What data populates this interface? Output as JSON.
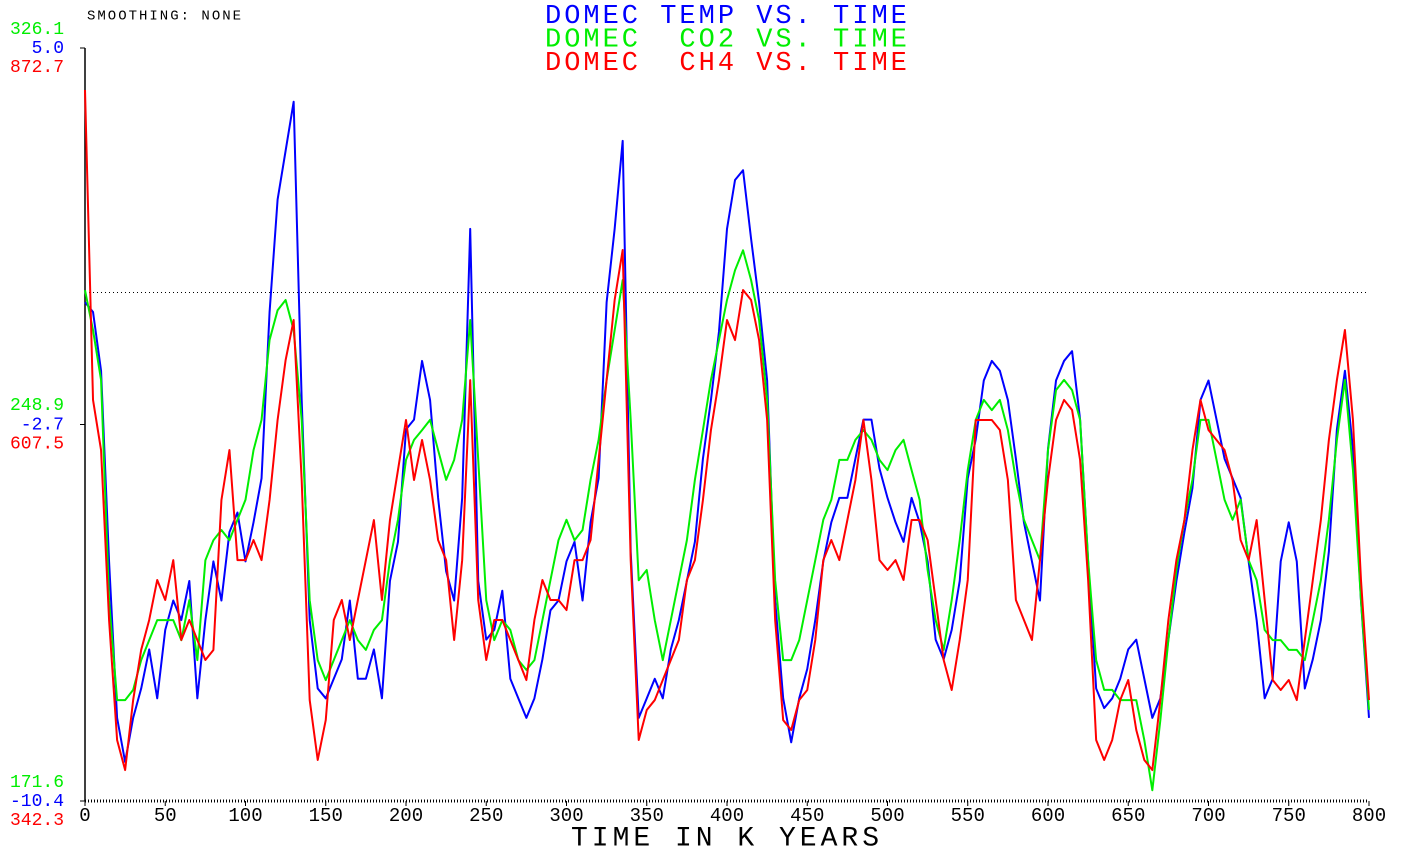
{
  "chart_data": {
    "type": "line",
    "subtitle": "SMOOTHING: NONE",
    "x_label": "TIME IN K YEARS",
    "xlim": [
      0,
      800
    ],
    "xticks": [
      0,
      50,
      100,
      150,
      200,
      250,
      300,
      350,
      400,
      450,
      500,
      550,
      600,
      650,
      700,
      750,
      800
    ],
    "reference_y": 0,
    "x": [
      0,
      5,
      10,
      15,
      20,
      25,
      30,
      35,
      40,
      45,
      50,
      55,
      60,
      65,
      70,
      75,
      80,
      85,
      90,
      95,
      100,
      105,
      110,
      115,
      120,
      125,
      130,
      135,
      140,
      145,
      150,
      155,
      160,
      165,
      170,
      175,
      180,
      185,
      190,
      195,
      200,
      205,
      210,
      215,
      220,
      225,
      230,
      235,
      240,
      245,
      250,
      255,
      260,
      265,
      270,
      275,
      280,
      285,
      290,
      295,
      300,
      305,
      310,
      315,
      320,
      325,
      330,
      335,
      340,
      345,
      350,
      355,
      360,
      365,
      370,
      375,
      380,
      385,
      390,
      395,
      400,
      405,
      410,
      415,
      420,
      425,
      430,
      435,
      440,
      445,
      450,
      455,
      460,
      465,
      470,
      475,
      480,
      485,
      490,
      495,
      500,
      505,
      510,
      515,
      520,
      525,
      530,
      535,
      540,
      545,
      550,
      555,
      560,
      565,
      570,
      575,
      580,
      585,
      590,
      595,
      600,
      605,
      610,
      615,
      620,
      625,
      630,
      635,
      640,
      645,
      650,
      655,
      660,
      665,
      670,
      675,
      680,
      685,
      690,
      695,
      700,
      705,
      710,
      715,
      720,
      725,
      730,
      735,
      740,
      745,
      750,
      755,
      760,
      765,
      770,
      775,
      780,
      785,
      790,
      795,
      800
    ],
    "series": [
      {
        "name": "DOMEC TEMP VS. TIME",
        "color": "#0000ff",
        "ylim": [
          -10.4,
          5
        ],
        "yticks": [
          -10.4,
          -2.7,
          {
            "value": 5,
            "label": "5.0"
          }
        ],
        "values": [
          -0.2,
          -0.4,
          -1.6,
          -5.5,
          -8.7,
          -9.6,
          -8.7,
          -8.1,
          -7.3,
          -8.3,
          -6.9,
          -6.3,
          -6.7,
          -5.9,
          -8.3,
          -6.7,
          -5.5,
          -6.3,
          -4.9,
          -4.5,
          -5.5,
          -4.7,
          -3.8,
          -0.4,
          1.9,
          2.9,
          3.9,
          -2.2,
          -6.7,
          -8.1,
          -8.3,
          -7.9,
          -7.5,
          -6.3,
          -7.9,
          -7.9,
          -7.3,
          -8.3,
          -5.9,
          -5.1,
          -2.8,
          -2.6,
          -1.4,
          -2.2,
          -4.2,
          -5.7,
          -6.3,
          -4.2,
          1.3,
          -5.9,
          -7.1,
          -6.9,
          -6.1,
          -7.9,
          -8.3,
          -8.7,
          -8.3,
          -7.5,
          -6.5,
          -6.3,
          -5.5,
          -5.1,
          -6.3,
          -4.7,
          -3.8,
          -0.2,
          1.3,
          3.1,
          -5.3,
          -8.7,
          -8.3,
          -7.9,
          -8.3,
          -7.3,
          -6.7,
          -5.9,
          -5.1,
          -3.4,
          -2.2,
          -0.8,
          1.3,
          2.3,
          2.5,
          1.1,
          -0.2,
          -1.8,
          -6.3,
          -8.3,
          -9.2,
          -8.3,
          -7.7,
          -6.7,
          -5.5,
          -4.7,
          -4.2,
          -4.2,
          -3.4,
          -2.6,
          -2.6,
          -3.6,
          -4.2,
          -4.7,
          -5.1,
          -4.2,
          -4.7,
          -5.5,
          -7.1,
          -7.5,
          -6.9,
          -5.9,
          -3.8,
          -3.0,
          -1.8,
          -1.4,
          -1.6,
          -2.2,
          -3.4,
          -4.7,
          -5.5,
          -6.3,
          -3.2,
          -1.8,
          -1.4,
          -1.2,
          -2.6,
          -5.5,
          -8.1,
          -8.5,
          -8.3,
          -7.9,
          -7.3,
          -7.1,
          -7.9,
          -8.7,
          -8.3,
          -7.1,
          -5.9,
          -4.9,
          -4.0,
          -2.2,
          -1.8,
          -2.6,
          -3.4,
          -3.8,
          -4.2,
          -5.5,
          -6.7,
          -8.3,
          -7.9,
          -5.5,
          -4.7,
          -5.5,
          -8.1,
          -7.5,
          -6.7,
          -5.3,
          -2.8,
          -1.6,
          -3.2,
          -6.3,
          -8.7
        ]
      },
      {
        "name": "DOMEC  CO2 VS. TIME",
        "color": "#00ee00",
        "ylim": [
          171.6,
          326.1
        ],
        "yticks": [
          171.6,
          248.9,
          326.1
        ],
        "values": [
          276.4,
          268.2,
          258.0,
          212.8,
          192.3,
          192.3,
          194.4,
          200.5,
          204.6,
          208.7,
          208.7,
          208.7,
          204.6,
          212.8,
          200.5,
          221.0,
          225.1,
          227.2,
          225.1,
          229.3,
          233.4,
          243.6,
          249.8,
          266.2,
          272.3,
          274.4,
          268.2,
          249.8,
          212.8,
          200.5,
          196.4,
          200.5,
          204.6,
          208.7,
          204.6,
          202.6,
          206.7,
          208.7,
          221.0,
          229.3,
          241.6,
          245.7,
          247.7,
          249.8,
          243.6,
          237.5,
          241.6,
          249.8,
          270.3,
          241.6,
          212.8,
          204.6,
          208.7,
          206.7,
          200.5,
          198.5,
          200.5,
          208.7,
          216.9,
          225.1,
          229.3,
          225.1,
          227.2,
          237.5,
          245.7,
          258.0,
          268.2,
          278.5,
          249.8,
          216.9,
          219.0,
          208.7,
          200.5,
          208.7,
          216.9,
          225.1,
          237.5,
          247.7,
          258.0,
          266.2,
          274.4,
          280.5,
          284.6,
          278.5,
          270.3,
          253.9,
          216.9,
          200.5,
          200.5,
          204.6,
          212.8,
          221.0,
          229.3,
          233.4,
          241.6,
          241.6,
          245.7,
          247.7,
          245.7,
          241.6,
          239.5,
          243.6,
          245.7,
          239.5,
          233.4,
          219.0,
          208.7,
          202.6,
          212.8,
          225.1,
          239.5,
          249.8,
          253.9,
          251.8,
          253.9,
          247.7,
          237.5,
          229.3,
          225.1,
          221.0,
          243.6,
          255.9,
          258.0,
          255.9,
          249.8,
          221.0,
          200.5,
          194.4,
          194.4,
          192.3,
          192.3,
          192.3,
          184.1,
          173.8,
          188.2,
          204.6,
          219.0,
          229.3,
          237.5,
          249.8,
          249.8,
          241.6,
          233.4,
          229.3,
          233.4,
          221.0,
          216.9,
          206.7,
          204.6,
          204.6,
          202.6,
          202.6,
          200.5,
          208.7,
          216.9,
          229.3,
          245.7,
          258.0,
          239.5,
          212.8,
          190.3
        ]
      },
      {
        "name": "DOMEC  CH4 VS. TIME",
        "color": "#ff0000",
        "ylim": [
          342.3,
          872.7
        ],
        "yticks": [
          342.3,
          607.5,
          872.7
        ],
        "values": [
          843.1,
          624.8,
          589.5,
          469.8,
          385.3,
          364.1,
          413.4,
          448.7,
          469.8,
          498.0,
          483.9,
          512.0,
          455.7,
          469.8,
          455.7,
          441.6,
          448.7,
          554.3,
          589.5,
          512.0,
          512.0,
          526.1,
          512.0,
          554.3,
          610.7,
          652.9,
          681.1,
          568.4,
          413.4,
          371.2,
          399.3,
          469.8,
          483.9,
          455.7,
          483.9,
          512.0,
          540.2,
          483.9,
          540.2,
          575.4,
          610.7,
          568.4,
          596.6,
          568.4,
          526.1,
          512.0,
          455.7,
          512.0,
          638.8,
          483.9,
          441.6,
          469.8,
          469.8,
          455.7,
          441.6,
          427.5,
          469.8,
          498.0,
          483.9,
          483.9,
          476.8,
          512.0,
          512.0,
          526.1,
          582.5,
          638.8,
          695.2,
          730.4,
          512.0,
          385.3,
          406.4,
          413.4,
          427.5,
          441.6,
          455.7,
          498.0,
          512.0,
          554.3,
          603.6,
          638.8,
          681.1,
          667.0,
          702.2,
          695.2,
          667.0,
          610.7,
          469.8,
          399.3,
          392.3,
          413.4,
          420.5,
          455.7,
          512.0,
          526.1,
          512.0,
          540.2,
          568.4,
          610.7,
          568.4,
          512.0,
          505.0,
          512.0,
          498.0,
          540.2,
          540.2,
          526.1,
          483.9,
          441.6,
          420.5,
          455.7,
          498.0,
          610.7,
          610.7,
          610.7,
          603.6,
          568.4,
          483.9,
          469.8,
          455.7,
          512.0,
          568.4,
          610.7,
          624.8,
          617.7,
          582.5,
          498.0,
          385.3,
          371.2,
          385.3,
          413.4,
          427.5,
          392.3,
          371.2,
          364.1,
          413.4,
          469.8,
          512.0,
          540.2,
          589.5,
          624.8,
          603.6,
          596.6,
          589.5,
          568.4,
          526.1,
          512.0,
          540.2,
          483.9,
          427.5,
          420.5,
          427.5,
          413.4,
          455.7,
          498.0,
          540.2,
          596.6,
          638.8,
          674.1,
          610.7,
          498.0,
          413.4
        ]
      }
    ]
  }
}
